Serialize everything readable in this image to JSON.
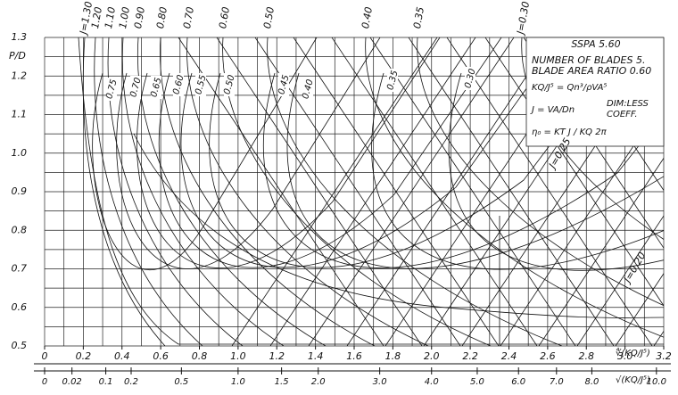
{
  "chart_data": {
    "type": "nomogram",
    "title": "SSPA 5.60",
    "notes": [
      "NUMBER OF BLADES 5.",
      "BLADE AREA RATIO 0.60"
    ],
    "formulas": [
      "KQ/J⁵ = Qn³/ρVA⁵",
      "J = VA/Dn",
      "η₀ = KT J / KQ 2π"
    ],
    "formula_note": [
      "DIM:LESS",
      "COEFF."
    ],
    "y_label": "P/D",
    "x_label": "∜(KQ/J⁵)",
    "x2_label": "√(KQ/J⁵)",
    "xlim": [
      0,
      3.2
    ],
    "xticks": [
      0,
      0.2,
      0.4,
      0.6,
      0.8,
      {
        "value": 1,
        "label": "1.0"
      },
      1.2,
      1.4,
      1.6,
      1.8,
      {
        "value": 2,
        "label": "2.0"
      },
      2.2,
      2.4,
      2.6,
      2.8,
      {
        "value": 3,
        "label": "3.0"
      },
      3.2
    ],
    "ylim": [
      0.5,
      1.3
    ],
    "yticks": [
      0.5,
      0.6,
      0.7,
      0.8,
      0.9,
      {
        "value": 1,
        "label": "1.0"
      },
      1.1,
      1.2,
      1.3
    ],
    "x2lim": [
      0,
      10.24
    ],
    "x2scale": "sqrt",
    "x2ticks": [
      0,
      0.02,
      0.1,
      0.2,
      0.5,
      {
        "value": 1,
        "label": "1.0"
      },
      1.5,
      {
        "value": 2,
        "label": "2.0"
      },
      {
        "value": 3,
        "label": "3.0"
      },
      {
        "value": 4,
        "label": "4.0"
      },
      {
        "value": 5,
        "label": "5.0"
      },
      {
        "value": 6,
        "label": "6.0"
      },
      {
        "value": 7,
        "label": "7.0"
      },
      {
        "value": 8,
        "label": "8.0"
      },
      {
        "value": 10,
        "label": "10.0"
      }
    ],
    "grid": true,
    "j_labels": [
      "J=1.30",
      "1.20",
      "1.10",
      "1.00",
      "0.90",
      "0.80",
      "0.70",
      "0.60",
      "0.50",
      "0.40",
      "0.35",
      "J=0.30",
      "J=0.25",
      "J=0.20"
    ],
    "eta_labels": [
      "0.75",
      "0.70",
      "0.65",
      "0.60",
      "0.55",
      "0.50",
      "0.45",
      "0.40",
      "0.35",
      "0.30"
    ]
  }
}
